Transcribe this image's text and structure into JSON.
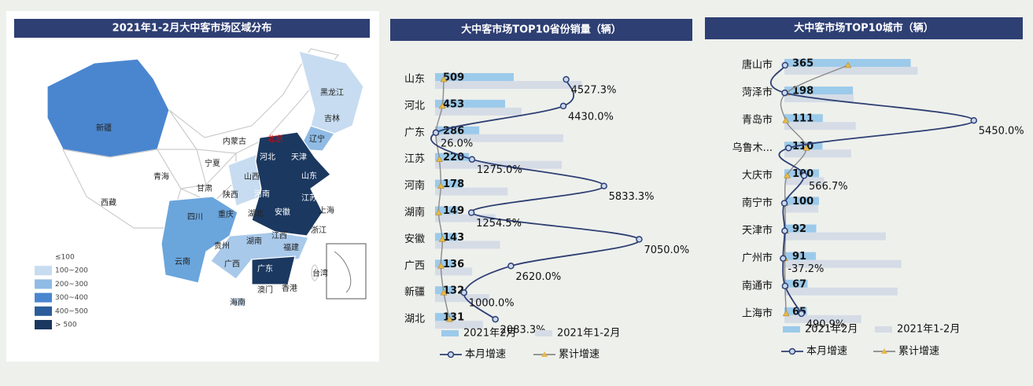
{
  "map": {
    "title": "2021年1-2月大中客市场区域分布",
    "labels": [
      "新疆",
      "西藏",
      "青海",
      "甘肃",
      "宁夏",
      "内蒙古",
      "黑龙江",
      "吉林",
      "辽宁",
      "北京",
      "天津",
      "河北",
      "山西",
      "陕西",
      "山东",
      "河南",
      "江苏",
      "安徽",
      "上海",
      "浙江",
      "湖北",
      "重庆",
      "四川",
      "湖南",
      "江西",
      "贵州",
      "云南",
      "广西",
      "福建",
      "广东",
      "台湾",
      "香港",
      "澳门",
      "海南"
    ],
    "legend": [
      {
        "label": "≤100",
        "color": "#eef3f9"
      },
      {
        "label": "100~200",
        "color": "#c7dcf0"
      },
      {
        "label": "200~300",
        "color": "#8fbbe4"
      },
      {
        "label": "300~400",
        "color": "#4a86cf"
      },
      {
        "label": "400~500",
        "color": "#2a5d99"
      },
      {
        "label": "> 500",
        "color": "#1b3860"
      }
    ]
  },
  "chart_data": [
    {
      "type": "bar",
      "orientation": "horizontal",
      "title": "大中客市场TOP10省份销量（辆）",
      "categories": [
        "山东",
        "河北",
        "广东",
        "江苏",
        "河南",
        "湖南",
        "安徽",
        "广西",
        "新疆",
        "湖北"
      ],
      "xlim": [
        0,
        1400
      ],
      "x2lim": [
        0,
        7500
      ],
      "series": [
        {
          "name": "2021年2月",
          "color": "#9ccaea",
          "values": [
            509,
            453,
            286,
            220,
            178,
            149,
            143,
            136,
            132,
            131
          ]
        },
        {
          "name": "2021年1-2月",
          "color": "#d5dce6",
          "values": [
            950,
            560,
            830,
            820,
            470,
            390,
            420,
            240,
            350,
            310
          ]
        },
        {
          "name": "本月增速",
          "type": "line",
          "axis": "x2",
          "color": "#2e3f73",
          "marker_color": "#c8d8ee",
          "values": [
            4527.3,
            4430.0,
            26.0,
            1275.0,
            5833.3,
            1254.5,
            7050.0,
            2620.0,
            1000.0,
            2083.3
          ],
          "value_labels": [
            "4527.3%",
            "4430.0%",
            "26.0%",
            "1275.0%",
            "5833.3%",
            "1254.5%",
            "7050.0%",
            "2620.0%",
            "1000.0%",
            "2083.3%"
          ]
        },
        {
          "name": "累计增速",
          "type": "line",
          "axis": "x2",
          "color": "#8a8a8a",
          "marker_color": "#e8b84a",
          "values": [
            300,
            250,
            30,
            150,
            200,
            120,
            250,
            200,
            300,
            500
          ]
        }
      ]
    },
    {
      "type": "bar",
      "orientation": "horizontal",
      "title": "大中客市场TOP10城市（辆）",
      "categories": [
        "唐山市",
        "菏泽市",
        "青岛市",
        "乌鲁木...",
        "大庆市",
        "南宁市",
        "天津市",
        "广州市",
        "南通市",
        "上海市"
      ],
      "xlim": [
        0,
        400
      ],
      "x2lim": [
        0,
        5500
      ],
      "series": [
        {
          "name": "2021年2月",
          "color": "#9ccaea",
          "values": [
            365,
            198,
            111,
            110,
            100,
            100,
            92,
            91,
            67,
            65
          ]
        },
        {
          "name": "2021年1-2月",
          "color": "#d5dce6",
          "values": [
            385,
            200,
            206,
            193,
            115,
            98,
            293,
            338,
            327,
            222
          ]
        },
        {
          "name": "本月增速",
          "type": "line",
          "axis": "x2",
          "color": "#2e3f73",
          "marker_color": "#c8d8ee",
          "values": [
            20,
            10,
            5450.0,
            120,
            566.7,
            0,
            10,
            -37.2,
            20,
            490.9
          ],
          "value_labels": [
            null,
            null,
            "5450.0%",
            null,
            "566.7%",
            null,
            null,
            "-37.2%",
            null,
            "490.9%"
          ]
        },
        {
          "name": "累计增速",
          "type": "line",
          "axis": "x2",
          "color": "#8a8a8a",
          "marker_color": "#e8b84a",
          "values": [
            1830,
            60,
            40,
            630,
            80,
            20,
            30,
            10,
            20,
            50
          ]
        }
      ]
    }
  ]
}
